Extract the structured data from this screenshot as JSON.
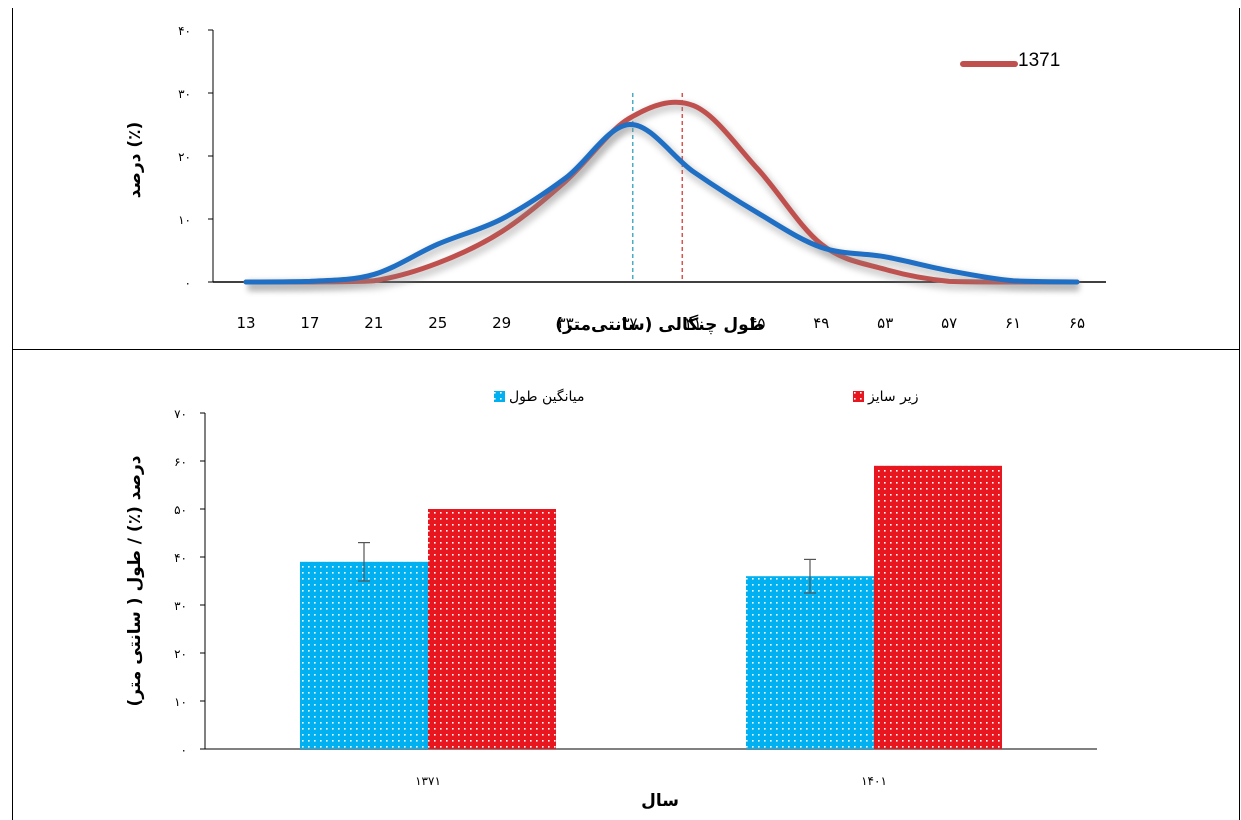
{
  "chart_data": [
    {
      "type": "line",
      "title": "",
      "xlabel": "طول چنگالی (سانتی‌متر)",
      "ylabel": "درصد (٪)",
      "categories": [
        "13",
        "17",
        "21",
        "25",
        "29",
        "۳۳",
        "۳۷",
        "۴۱",
        "۴۵",
        "۴۹",
        "۵۳",
        "۵۷",
        "۶۱",
        "۶۵"
      ],
      "x": [
        13,
        17,
        21,
        25,
        29,
        33,
        37,
        41,
        45,
        49,
        53,
        57,
        61,
        65
      ],
      "ylim": [
        0,
        40
      ],
      "yticks": [
        "۰",
        "۱۰",
        "۲۰",
        "۳۰",
        "۴۰"
      ],
      "series": [
        {
          "name": "1371",
          "color": "#c0504d",
          "values": [
            0,
            0,
            0.2,
            3,
            8,
            16,
            26,
            28,
            18,
            6,
            2,
            0.1,
            0,
            0
          ]
        },
        {
          "name": "",
          "color": "#1f6fc5",
          "values": [
            0,
            0.1,
            1.2,
            6,
            10,
            16.5,
            25,
            17.5,
            11,
            5.5,
            4,
            1.8,
            0.2,
            0
          ]
        }
      ],
      "reference_lines": [
        {
          "x": 37.2,
          "color": "#4bacc6"
        },
        {
          "x": 40.3,
          "color": "#d9534f"
        }
      ],
      "grid": false,
      "legend": "top-right"
    },
    {
      "type": "bar",
      "title": "",
      "xlabel": "سال",
      "ylabel": "درصد (٪)  /  طول ( سانتی متر)",
      "categories": [
        "۱۳۷۱",
        "۱۴۰۱"
      ],
      "ylim": [
        0,
        70
      ],
      "yticks": [
        "۰",
        "۱۰",
        "۲۰",
        "۳۰",
        "۴۰",
        "۵۰",
        "۶۰",
        "۷۰"
      ],
      "series": [
        {
          "name": "میانگین طول",
          "color": "#00b0f0",
          "values": [
            39,
            36
          ],
          "error": [
            4,
            3.5
          ]
        },
        {
          "name": "زیر سایز",
          "color": "#e8161e",
          "values": [
            50,
            59
          ]
        }
      ],
      "grid": false,
      "legend": "top"
    }
  ]
}
